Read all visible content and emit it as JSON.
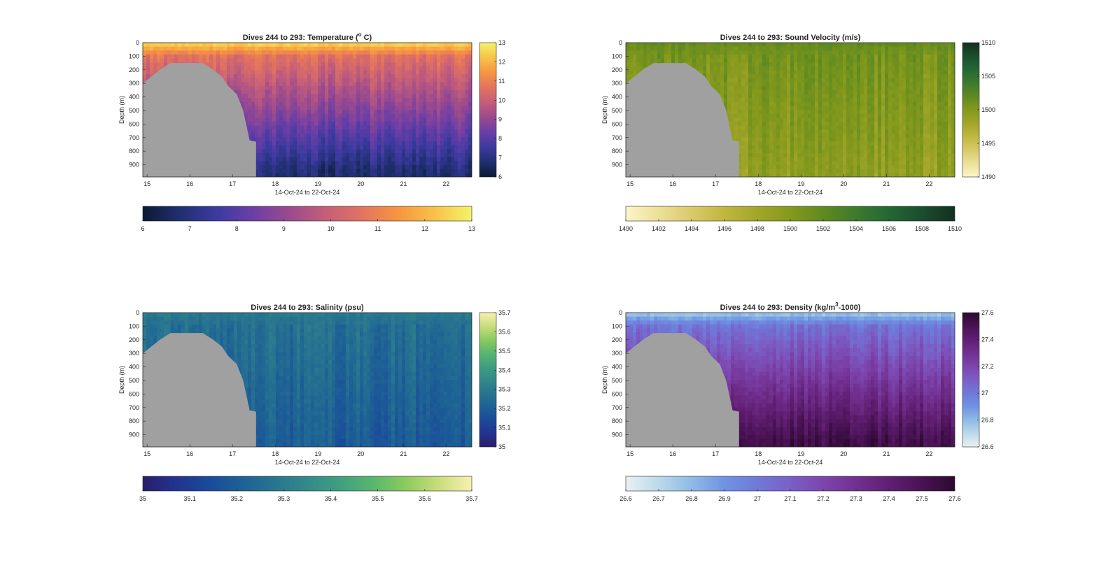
{
  "figure": {
    "panels": [
      {
        "id": "temperature",
        "title": "Dives 244 to 293: Temperature (",
        "title_sup": "o",
        "title_post": " C)",
        "palette": [
          "#0b1a33",
          "#1f2f70",
          "#3c3aa0",
          "#6b3ea6",
          "#9a4a8f",
          "#c45e79",
          "#e3735f",
          "#f7963f",
          "#f8c24a",
          "#f4f369"
        ],
        "colorbar": {
          "range": [
            6,
            13
          ],
          "vertical_ticks": [
            "6",
            "7",
            "8",
            "9",
            "10",
            "11",
            "12",
            "13"
          ],
          "horizontal_ticks": [
            "6",
            "7",
            "8",
            "9",
            "10",
            "11",
            "12",
            "13"
          ]
        },
        "surface_fraction": 0.95,
        "deep_fraction": 0.12
      },
      {
        "id": "sound_velocity",
        "title": "Dives 244 to 293: Sound Velocity (m/s)",
        "palette": [
          "#fcf5c6",
          "#ece09a",
          "#d8ca6a",
          "#bfb73f",
          "#a2a62a",
          "#84991c",
          "#5f8a20",
          "#3d7a2c",
          "#246734",
          "#1a4e2e",
          "#13301f"
        ],
        "colorbar": {
          "range": [
            1490,
            1510
          ],
          "vertical_ticks": [
            "1490",
            "1495",
            "1500",
            "1505",
            "1510"
          ],
          "horizontal_ticks": [
            "1490",
            "1492",
            "1494",
            "1496",
            "1498",
            "1500",
            "1502",
            "1504",
            "1506",
            "1508",
            "1510"
          ]
        },
        "surface_fraction": 0.58,
        "deep_fraction": 0.45
      },
      {
        "id": "salinity",
        "title": "Dives 244 to 293: Salinity (psu)",
        "palette": [
          "#2a1d6b",
          "#23338f",
          "#1a4a9a",
          "#1d6195",
          "#28758f",
          "#338a8a",
          "#3f9f80",
          "#59b66f",
          "#8ccb5e",
          "#c9dd7c",
          "#f8f0b0"
        ],
        "colorbar": {
          "range": [
            35,
            35.7
          ],
          "vertical_ticks": [
            "35",
            "35.1",
            "35.2",
            "35.3",
            "35.4",
            "35.5",
            "35.6",
            "35.7"
          ],
          "horizontal_ticks": [
            "35",
            "35.1",
            "35.2",
            "35.3",
            "35.4",
            "35.5",
            "35.6",
            "35.7"
          ]
        },
        "surface_fraction": 0.42,
        "deep_fraction": 0.28
      },
      {
        "id": "density",
        "title": "Dives 244 to 293: Density (kg/m",
        "title_sup": "3",
        "title_post": "-1000)",
        "palette": [
          "#e8f1f3",
          "#bcd9e8",
          "#8fbbe6",
          "#6f93e2",
          "#6f79d8",
          "#7a5fc6",
          "#7c45ae",
          "#723090",
          "#601f73",
          "#4a1254",
          "#2c0a30"
        ],
        "colorbar": {
          "range": [
            26.6,
            27.6
          ],
          "vertical_ticks": [
            "26.6",
            "26.8",
            "27",
            "27.2",
            "27.4",
            "27.6"
          ],
          "horizontal_ticks": [
            "26.6",
            "26.7",
            "26.8",
            "26.9",
            "27",
            "27.1",
            "27.2",
            "27.3",
            "27.4",
            "27.5",
            "27.6"
          ]
        },
        "surface_fraction": 0.15,
        "deep_fraction": 0.93
      }
    ]
  },
  "chart_data": {
    "type": "heatmap",
    "x_ticks": [
      "15",
      "16",
      "17",
      "18",
      "19",
      "20",
      "21",
      "22"
    ],
    "x_range": [
      14.9,
      22.6
    ],
    "xlabel": "14-Oct-24 to 22-Oct-24",
    "ylabel": "Depth (m)",
    "y_ticks": [
      "0",
      "100",
      "200",
      "300",
      "400",
      "500",
      "600",
      "700",
      "800",
      "900"
    ],
    "y_range": [
      0,
      990
    ],
    "no_data_region_color": "#a0a0a0",
    "no_data_boundary": [
      {
        "x": 14.9,
        "depth": 300
      },
      {
        "x": 15.1,
        "depth": 250
      },
      {
        "x": 15.3,
        "depth": 200
      },
      {
        "x": 15.55,
        "depth": 150
      },
      {
        "x": 16.3,
        "depth": 150
      },
      {
        "x": 16.55,
        "depth": 200
      },
      {
        "x": 16.75,
        "depth": 250
      },
      {
        "x": 16.9,
        "depth": 320
      },
      {
        "x": 17.1,
        "depth": 380
      },
      {
        "x": 17.25,
        "depth": 500
      },
      {
        "x": 17.4,
        "depth": 720
      },
      {
        "x": 17.55,
        "depth": 730
      },
      {
        "x": 17.55,
        "depth": 990
      }
    ]
  }
}
